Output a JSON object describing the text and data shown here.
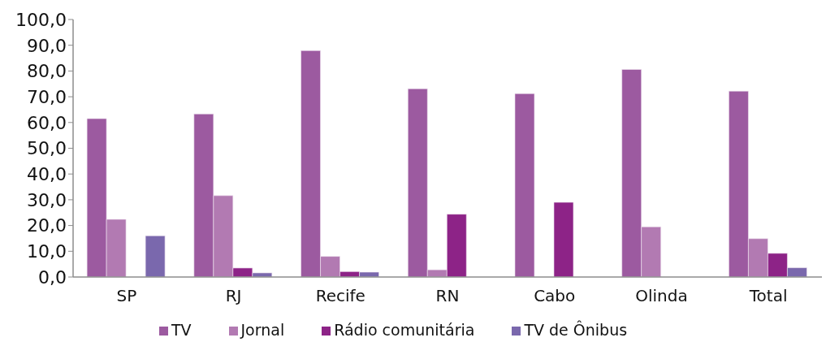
{
  "chart_data": {
    "type": "bar",
    "categories": [
      "SP",
      "RJ",
      "Recife",
      "RN",
      "Cabo",
      "Olinda",
      "Total"
    ],
    "series": [
      {
        "name": "TV",
        "color": "#9c5aa0",
        "values": [
          61.5,
          63.3,
          87.9,
          73.1,
          71.2,
          80.6,
          72.2
        ]
      },
      {
        "name": "Jornal",
        "color": "#b27ab2",
        "values": [
          22.4,
          31.6,
          8.0,
          2.8,
          null,
          19.5,
          14.9
        ]
      },
      {
        "name": "Rádio comunitária",
        "color": "#8d2387",
        "values": [
          null,
          3.5,
          2.1,
          24.4,
          29.0,
          null,
          9.2
        ]
      },
      {
        "name": "TV de Ônibus",
        "color": "#7a68ad",
        "values": [
          16.0,
          1.6,
          1.9,
          null,
          null,
          null,
          3.6
        ]
      }
    ],
    "ylim": [
      0,
      100
    ],
    "yticks": [
      {
        "value": 0,
        "label": "0,0"
      },
      {
        "value": 10,
        "label": "10,0"
      },
      {
        "value": 20,
        "label": "20,0"
      },
      {
        "value": 30,
        "label": "30,0"
      },
      {
        "value": 40,
        "label": "40,0"
      },
      {
        "value": 50,
        "label": "50,0"
      },
      {
        "value": 60,
        "label": "60,0"
      },
      {
        "value": 70,
        "label": "70,0"
      },
      {
        "value": 80,
        "label": "80,0"
      },
      {
        "value": 90,
        "label": "90,0"
      },
      {
        "value": 100,
        "label": "100,0"
      }
    ],
    "legend": "bottom"
  }
}
